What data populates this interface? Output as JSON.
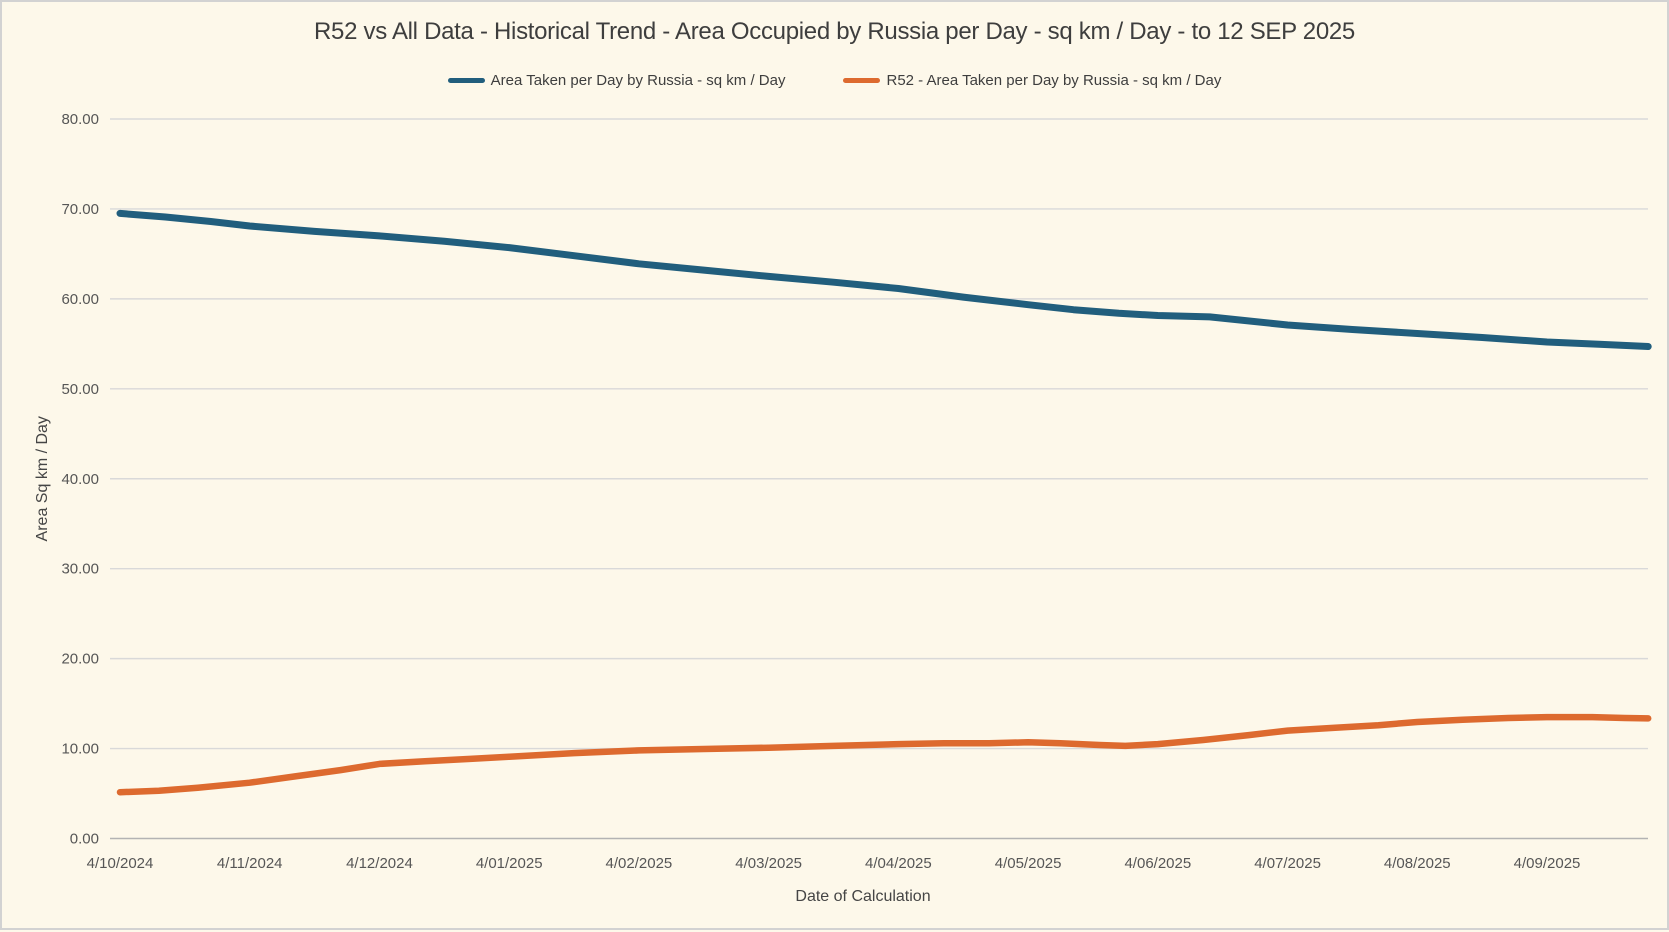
{
  "window": {
    "background": "#fdf8ea",
    "border_color": "#d2d2d2"
  },
  "chart_data": {
    "type": "line",
    "title": "R52 vs All Data - Historical Trend - Area Occupied by Russia per Day - sq km / Day - to 12 SEP 2025",
    "xlabel": "Date of Calculation",
    "ylabel": "Area Sq km / Day",
    "ylim": [
      0,
      80
    ],
    "grid": "horizontal-only",
    "grid_color": "#d9d9d9",
    "legend_position": "top-center",
    "yticks": [
      {
        "value": 0,
        "label": "0.00"
      },
      {
        "value": 10,
        "label": "10.00"
      },
      {
        "value": 20,
        "label": "20.00"
      },
      {
        "value": 30,
        "label": "30.00"
      },
      {
        "value": 40,
        "label": "40.00"
      },
      {
        "value": 50,
        "label": "50.00"
      },
      {
        "value": 60,
        "label": "60.00"
      },
      {
        "value": 70,
        "label": "70.00"
      },
      {
        "value": 80,
        "label": "80.00"
      }
    ],
    "x_tick_labels": [
      "4/10/2024",
      "4/11/2024",
      "4/12/2024",
      "4/01/2025",
      "4/02/2025",
      "4/03/2025",
      "4/04/2025",
      "4/05/2025",
      "4/06/2025",
      "4/07/2025",
      "4/08/2025",
      "4/09/2025"
    ],
    "x_extends_to": "12 SEP 2025",
    "series": [
      {
        "name": "Area Taken per Day by Russia - sq km / Day",
        "color": "#215e7d",
        "stroke_width": 7,
        "points": [
          [
            0,
            69.5
          ],
          [
            0.35,
            69.1
          ],
          [
            0.7,
            68.6
          ],
          [
            1,
            68.1
          ],
          [
            1.5,
            67.5
          ],
          [
            2,
            67.0
          ],
          [
            2.5,
            66.4
          ],
          [
            3,
            65.7
          ],
          [
            3.5,
            64.8
          ],
          [
            4,
            63.9
          ],
          [
            4.5,
            63.2
          ],
          [
            5,
            62.5
          ],
          [
            5.5,
            61.85
          ],
          [
            6,
            61.15
          ],
          [
            6.5,
            60.2
          ],
          [
            7,
            59.35
          ],
          [
            7.35,
            58.8
          ],
          [
            7.7,
            58.4
          ],
          [
            8,
            58.15
          ],
          [
            8.4,
            58.0
          ],
          [
            9,
            57.1
          ],
          [
            9.5,
            56.6
          ],
          [
            10,
            56.15
          ],
          [
            10.5,
            55.7
          ],
          [
            11,
            55.2
          ],
          [
            11.4,
            54.95
          ],
          [
            11.78,
            54.7
          ]
        ]
      },
      {
        "name": "R52 - Area Taken per Day by Russia - sq km / Day",
        "color": "#dd6a2f",
        "stroke_width": 6.5,
        "points": [
          [
            0,
            5.15
          ],
          [
            0.3,
            5.3
          ],
          [
            0.6,
            5.65
          ],
          [
            1,
            6.2
          ],
          [
            1.35,
            6.9
          ],
          [
            1.7,
            7.6
          ],
          [
            2,
            8.3
          ],
          [
            2.35,
            8.6
          ],
          [
            2.7,
            8.85
          ],
          [
            3,
            9.1
          ],
          [
            3.5,
            9.5
          ],
          [
            4,
            9.8
          ],
          [
            4.5,
            9.95
          ],
          [
            5,
            10.1
          ],
          [
            5.5,
            10.3
          ],
          [
            6,
            10.5
          ],
          [
            6.35,
            10.6
          ],
          [
            6.7,
            10.6
          ],
          [
            7,
            10.7
          ],
          [
            7.25,
            10.6
          ],
          [
            7.55,
            10.4
          ],
          [
            7.75,
            10.3
          ],
          [
            8,
            10.5
          ],
          [
            8.35,
            10.95
          ],
          [
            8.7,
            11.5
          ],
          [
            9,
            12.0
          ],
          [
            9.35,
            12.3
          ],
          [
            9.7,
            12.6
          ],
          [
            10,
            12.95
          ],
          [
            10.35,
            13.2
          ],
          [
            10.7,
            13.4
          ],
          [
            11,
            13.5
          ],
          [
            11.35,
            13.5
          ],
          [
            11.6,
            13.4
          ],
          [
            11.78,
            13.35
          ]
        ]
      }
    ]
  }
}
